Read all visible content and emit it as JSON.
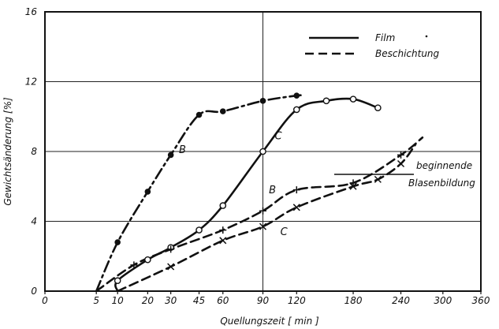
{
  "chart_data": {
    "type": "line",
    "title": "",
    "xlabel": "Quellungszeit [ min ]",
    "ylabel": "Gewichtsänderung [%]",
    "x_ticks": [
      0,
      5,
      10,
      20,
      30,
      45,
      60,
      90,
      120,
      180,
      240,
      300,
      360
    ],
    "x_ticks_sqrt_scale": true,
    "y_ticks": [
      0,
      4,
      8,
      12,
      16
    ],
    "xlim": [
      0,
      360
    ],
    "ylim": [
      0,
      16
    ],
    "grid": true,
    "legend_position": "top-right",
    "legend": [
      {
        "label": "Film",
        "style": "solid"
      },
      {
        "label": "Beschichtung",
        "style": "dashed"
      }
    ],
    "series": [
      {
        "name": "B",
        "group": "Film",
        "style": "dash-dot",
        "marker": "filled-circle",
        "points": [
          [
            10,
            2.8
          ],
          [
            20,
            5.7
          ],
          [
            30,
            7.8
          ],
          [
            45,
            10.1
          ],
          [
            60,
            10.3
          ],
          [
            90,
            10.9
          ],
          [
            120,
            11.2
          ]
        ]
      },
      {
        "name": "C",
        "group": "Film",
        "style": "solid",
        "marker": "open-circle",
        "points": [
          [
            10,
            0.6
          ],
          [
            20,
            1.8
          ],
          [
            30,
            2.5
          ],
          [
            45,
            3.5
          ],
          [
            60,
            4.9
          ],
          [
            90,
            8.0
          ],
          [
            120,
            10.4
          ],
          [
            150,
            10.9
          ],
          [
            180,
            11.0
          ],
          [
            210,
            10.5
          ]
        ]
      },
      {
        "name": "B",
        "group": "Beschichtung",
        "style": "dashed",
        "marker": "plus",
        "points": [
          [
            15,
            1.5
          ],
          [
            30,
            2.4
          ],
          [
            60,
            3.5
          ],
          [
            90,
            4.6
          ],
          [
            120,
            5.8
          ],
          [
            180,
            6.2
          ],
          [
            240,
            7.8
          ]
        ]
      },
      {
        "name": "C",
        "group": "Beschichtung",
        "style": "dashed",
        "marker": "cross",
        "points": [
          [
            30,
            1.4
          ],
          [
            60,
            2.9
          ],
          [
            90,
            3.7
          ],
          [
            120,
            4.8
          ],
          [
            180,
            6.0
          ],
          [
            210,
            6.4
          ],
          [
            240,
            7.3
          ]
        ]
      }
    ],
    "annotations": [
      {
        "text": "beginnende",
        "x": 210,
        "y": 7.5
      },
      {
        "text": "Blasenbildung",
        "x": 210,
        "y": 6.2
      }
    ]
  }
}
